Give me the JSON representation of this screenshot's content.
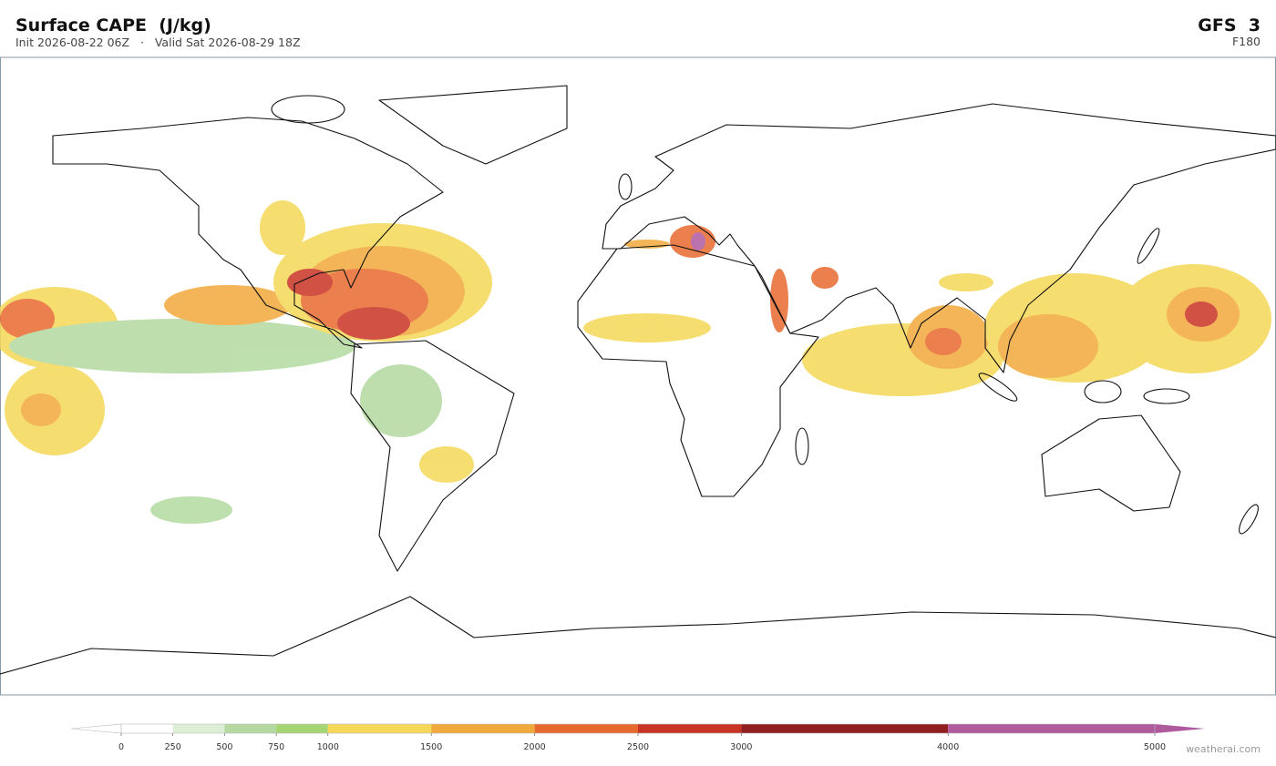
{
  "header": {
    "title": "Surface CAPE  (J/kg)",
    "subtitle": "Init 2026-08-22 06Z   ·   Valid Sat 2026-08-29 18Z",
    "model": "GFS  3",
    "forecast_hour": "F180"
  },
  "colorbar": {
    "ticks": [
      0,
      250,
      500,
      750,
      1000,
      1500,
      2000,
      2500,
      3000,
      4000,
      5000
    ],
    "colors": [
      "#ffffff",
      "#dcefd4",
      "#b3d9a0",
      "#a6d672",
      "#f5d857",
      "#f2a93b",
      "#e8692e",
      "#c93424",
      "#922020",
      "#b05a9e"
    ],
    "under_color": "#ffffff",
    "over_color": "#b05a9e"
  },
  "watermark": "weatherai.com"
}
